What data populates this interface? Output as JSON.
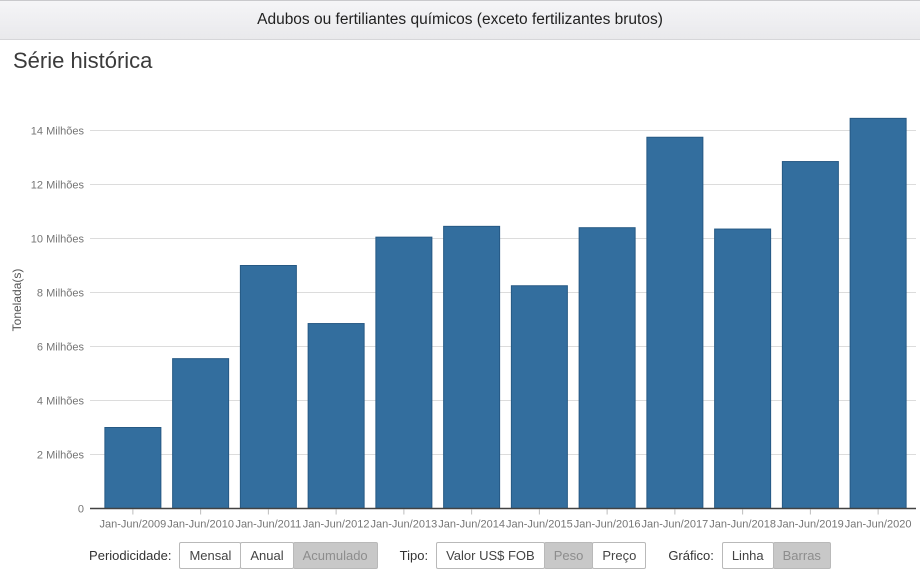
{
  "header": {
    "title": "Adubos ou fertiliantes químicos (exceto fertilizantes brutos)"
  },
  "section": {
    "title": "Série histórica"
  },
  "chart_data": {
    "type": "bar",
    "title": "Série histórica",
    "xlabel": "",
    "ylabel": "Tonelada(s)",
    "categories": [
      "Jan-Jun/2009",
      "Jan-Jun/2010",
      "Jan-Jun/2011",
      "Jan-Jun/2012",
      "Jan-Jun/2013",
      "Jan-Jun/2014",
      "Jan-Jun/2015",
      "Jan-Jun/2016",
      "Jan-Jun/2017",
      "Jan-Jun/2018",
      "Jan-Jun/2019",
      "Jan-Jun/2020"
    ],
    "values_millions": [
      3.0,
      5.55,
      9.0,
      6.85,
      10.05,
      10.45,
      8.25,
      10.4,
      13.75,
      10.35,
      12.85,
      14.45
    ],
    "value_unit": "Milhões",
    "ytick_labels": [
      "0",
      "2 Milhões",
      "4 Milhões",
      "6 Milhões",
      "8 Milhões",
      "10 Milhões",
      "12 Milhões",
      "14 Milhões"
    ],
    "ytick_interval_millions": 2,
    "ylim_millions": [
      0,
      15.5
    ],
    "grid": true,
    "legend": "none",
    "colors": {
      "bar_fill": "#336e9e",
      "bar_stroke": "#265984",
      "gridline": "#dcdcdc",
      "axis_line": "#424242",
      "tick_mark": "#bdbdbd",
      "tick_label": "#757575",
      "axis_title": "#555555"
    }
  },
  "controls": {
    "groups": [
      {
        "label": "Periodicidade:",
        "options": [
          {
            "label": "Mensal",
            "selected": false
          },
          {
            "label": "Anual",
            "selected": false
          },
          {
            "label": "Acumulado",
            "selected": true
          }
        ]
      },
      {
        "label": "Tipo:",
        "options": [
          {
            "label": "Valor US$ FOB",
            "selected": false
          },
          {
            "label": "Peso",
            "selected": true
          },
          {
            "label": "Preço",
            "selected": false
          }
        ]
      },
      {
        "label": "Gráfico:",
        "options": [
          {
            "label": "Linha",
            "selected": false
          },
          {
            "label": "Barras",
            "selected": true
          }
        ]
      }
    ],
    "selected_bg": "#c8c8c8"
  }
}
